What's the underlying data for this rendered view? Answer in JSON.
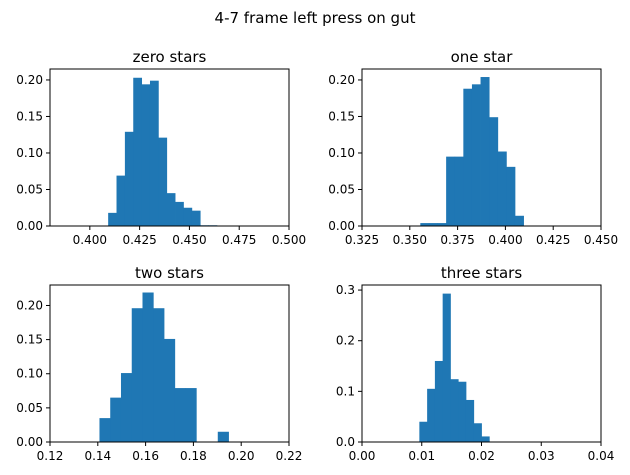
{
  "figure": {
    "title": "4-7 frame left press on gut",
    "bar_color": "#1f77b4"
  },
  "chart_data": [
    {
      "type": "bar",
      "title": "zero stars",
      "xlim": [
        0.38,
        0.5
      ],
      "ylim": [
        0,
        0.215
      ],
      "xticks": [
        0.4,
        0.425,
        0.45,
        0.475,
        0.5
      ],
      "xtick_labels": [
        "0.400",
        "0.425",
        "0.450",
        "0.475",
        "0.500"
      ],
      "yticks": [
        0,
        0.05,
        0.1,
        0.15,
        0.2
      ],
      "ytick_labels": [
        "0.00",
        "0.05",
        "0.10",
        "0.15",
        "0.20"
      ],
      "bins": [
        0.4092,
        0.4134,
        0.4176,
        0.4218,
        0.426,
        0.4302,
        0.4344,
        0.4386,
        0.4428,
        0.447,
        0.4512,
        0.4554,
        0.4596
      ],
      "bin_width": 0.0042,
      "values": [
        0.018,
        0.069,
        0.129,
        0.203,
        0.194,
        0.199,
        0.121,
        0.045,
        0.033,
        0.025,
        0.021,
        0.001,
        0.001
      ]
    },
    {
      "type": "bar",
      "title": "one star",
      "xlim": [
        0.325,
        0.45
      ],
      "ylim": [
        0,
        0.215
      ],
      "xticks": [
        0.325,
        0.35,
        0.375,
        0.4,
        0.425,
        0.45
      ],
      "xtick_labels": [
        "0.325",
        "0.350",
        "0.375",
        "0.400",
        "0.425",
        "0.450"
      ],
      "yticks": [
        0,
        0.05,
        0.1,
        0.15,
        0.2
      ],
      "ytick_labels": [
        "0.00",
        "0.05",
        "0.10",
        "0.15",
        "0.20"
      ],
      "bins": [
        0.3555,
        0.36,
        0.3645,
        0.369,
        0.3735,
        0.378,
        0.3825,
        0.387,
        0.3915,
        0.396,
        0.4005,
        0.405,
        0.4095
      ],
      "bin_width": 0.0045,
      "values": [
        0.004,
        0.004,
        0.004,
        0.095,
        0.095,
        0.188,
        0.194,
        0.204,
        0.149,
        0.102,
        0.081,
        0.014,
        0.0
      ]
    },
    {
      "type": "bar",
      "title": "two stars",
      "xlim": [
        0.12,
        0.22
      ],
      "ylim": [
        0,
        0.23
      ],
      "xticks": [
        0.12,
        0.14,
        0.16,
        0.18,
        0.2,
        0.22
      ],
      "xtick_labels": [
        "0.12",
        "0.14",
        "0.16",
        "0.18",
        "0.20",
        "0.22"
      ],
      "yticks": [
        0,
        0.05,
        0.1,
        0.15,
        0.2
      ],
      "ytick_labels": [
        "0.00",
        "0.05",
        "0.10",
        "0.15",
        "0.20"
      ],
      "bins": [
        0.1407,
        0.1452,
        0.1497,
        0.1542,
        0.1587,
        0.1632,
        0.1677,
        0.1722,
        0.1767,
        0.1812,
        0.1857,
        0.1902
      ],
      "bin_width": 0.0045,
      "values": [
        0.035,
        0.065,
        0.101,
        0.196,
        0.219,
        0.196,
        0.151,
        0.079,
        0.079,
        0.0,
        0.0,
        0.015
      ]
    },
    {
      "type": "bar",
      "title": "three stars",
      "xlim": [
        0.0,
        0.04
      ],
      "ylim": [
        0,
        0.31
      ],
      "xticks": [
        0.0,
        0.01,
        0.02,
        0.03,
        0.04
      ],
      "xtick_labels": [
        "0.00",
        "0.01",
        "0.02",
        "0.03",
        "0.04"
      ],
      "yticks": [
        0,
        0.1,
        0.2,
        0.3
      ],
      "ytick_labels": [
        "0.0",
        "0.1",
        "0.2",
        "0.3"
      ],
      "bins": [
        0.0096,
        0.0109,
        0.0122,
        0.0135,
        0.0148,
        0.0161,
        0.0174,
        0.0187,
        0.02
      ],
      "bin_width": 0.0013,
      "values": [
        0.04,
        0.105,
        0.16,
        0.293,
        0.124,
        0.119,
        0.083,
        0.037,
        0.011
      ]
    }
  ]
}
